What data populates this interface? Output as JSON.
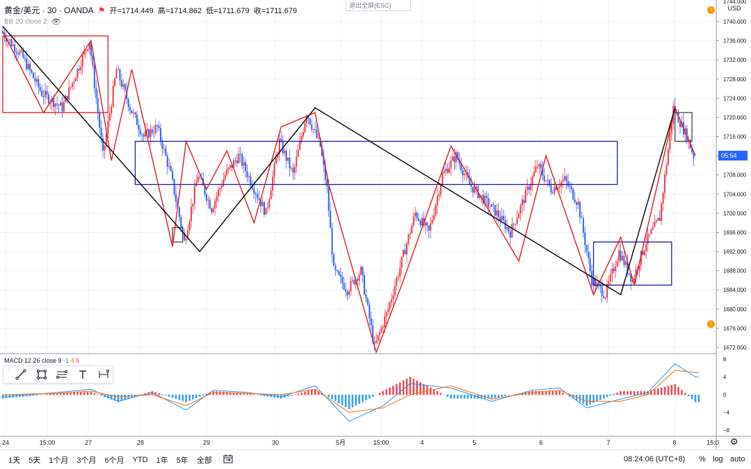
{
  "header": {
    "symbol": "黄金/美元 · 30 · OANDA",
    "open": "开=1714.449",
    "high": "高=1714.862",
    "low": "低=1711.679",
    "close": "收=1711.679",
    "indicator": "BB 20 close 2",
    "exit_fullscreen": "退出全屏(ESC)"
  },
  "price_axis": {
    "currency": "USD",
    "top_partial": "1744.000",
    "labels": [
      "1740.000",
      "1736.000",
      "1732.000",
      "1728.000",
      "1724.000",
      "1720.000",
      "1716.000",
      "1712.000",
      "1708.000",
      "1704.000",
      "1700.000",
      "1696.000",
      "1692.000",
      "1688.000",
      "1684.000",
      "1680.000",
      "1676.000",
      "1672.000"
    ],
    "current_tag": "05:54"
  },
  "macd": {
    "legend": "MACD 12 26 close 9",
    "values": [
      "-1",
      "4",
      "5"
    ],
    "axis_labels": [
      "8",
      "4",
      "0",
      "−4",
      "−8"
    ]
  },
  "time_axis": {
    "labels": [
      "24",
      "15:00",
      "27",
      "28",
      "29",
      "30",
      "5月",
      "15:00",
      "4",
      "5",
      "6",
      "7",
      "8",
      "15:0"
    ]
  },
  "toolbar": {
    "tools": [
      "trend-line",
      "rectangle",
      "fib",
      "text",
      "measure"
    ]
  },
  "bottom": {
    "timeframes": [
      "1天",
      "5天",
      "1个月",
      "3个月",
      "6个月",
      "YTD",
      "1年",
      "5年",
      "全部"
    ],
    "clock": "08:24:06 (UTC+8)",
    "percent": "%",
    "log": "log",
    "auto": "auto"
  },
  "colors": {
    "up": "#f23645",
    "down": "#2962ff",
    "zigzag_red": "#e31b1b",
    "zigzag_black": "#111111",
    "box_blue": "#1a1aa8",
    "box_red": "#d81e1e",
    "macd_fast": "#2196f3",
    "macd_slow": "#ff6d00"
  },
  "chart_data": {
    "type": "candlestick",
    "instrument": "XAU/USD",
    "interval": "30",
    "ylim": [
      1670,
      1744
    ],
    "price_waypoints": [
      [
        0,
        1738
      ],
      [
        3,
        1733
      ],
      [
        6,
        1725
      ],
      [
        9,
        1722
      ],
      [
        11,
        1729
      ],
      [
        13,
        1736
      ],
      [
        15,
        1712
      ],
      [
        17,
        1730
      ],
      [
        19,
        1722
      ],
      [
        21,
        1716
      ],
      [
        23,
        1718
      ],
      [
        25,
        1708
      ],
      [
        27,
        1694
      ],
      [
        29,
        1708
      ],
      [
        31,
        1701
      ],
      [
        33,
        1708
      ],
      [
        35,
        1712
      ],
      [
        37,
        1706
      ],
      [
        39,
        1700
      ],
      [
        41,
        1715
      ],
      [
        43,
        1708
      ],
      [
        45,
        1721
      ],
      [
        47,
        1714
      ],
      [
        48,
        1705
      ],
      [
        49,
        1688
      ],
      [
        51,
        1684
      ],
      [
        53,
        1688
      ],
      [
        55,
        1672
      ],
      [
        57,
        1680
      ],
      [
        59,
        1690
      ],
      [
        61,
        1700
      ],
      [
        63,
        1696
      ],
      [
        65,
        1708
      ],
      [
        67,
        1712
      ],
      [
        69,
        1706
      ],
      [
        71,
        1703
      ],
      [
        73,
        1700
      ],
      [
        75,
        1696
      ],
      [
        77,
        1703
      ],
      [
        79,
        1710
      ],
      [
        81,
        1705
      ],
      [
        83,
        1707
      ],
      [
        85,
        1702
      ],
      [
        87,
        1686
      ],
      [
        89,
        1683
      ],
      [
        91,
        1692
      ],
      [
        93,
        1686
      ],
      [
        95,
        1694
      ],
      [
        97,
        1699
      ],
      [
        99,
        1722
      ],
      [
        101,
        1716
      ],
      [
        102,
        1712
      ]
    ],
    "red_zigzag": [
      [
        0,
        1738
      ],
      [
        6,
        1721
      ],
      [
        13,
        1736
      ],
      [
        16,
        1711
      ],
      [
        19,
        1730
      ],
      [
        25,
        1693
      ],
      [
        27,
        1715
      ],
      [
        30,
        1705
      ],
      [
        33,
        1713
      ],
      [
        37,
        1698
      ],
      [
        41,
        1718
      ],
      [
        46,
        1721
      ],
      [
        48,
        1706
      ],
      [
        55,
        1671
      ],
      [
        59,
        1686
      ],
      [
        66,
        1714
      ],
      [
        76,
        1690
      ],
      [
        80,
        1712
      ],
      [
        87,
        1683
      ],
      [
        91,
        1695
      ],
      [
        93,
        1685
      ],
      [
        99,
        1722
      ],
      [
        102,
        1712
      ]
    ],
    "black_zigzag": [
      [
        0,
        1739
      ],
      [
        29,
        1692
      ],
      [
        46,
        1722
      ],
      [
        91,
        1683
      ],
      [
        99,
        1722
      ]
    ],
    "macd_fast_points": [
      [
        0,
        -0.5
      ],
      [
        8,
        0.5
      ],
      [
        13,
        1.2
      ],
      [
        17,
        -1.5
      ],
      [
        22,
        0.5
      ],
      [
        27,
        -3.5
      ],
      [
        31,
        1
      ],
      [
        36,
        0.5
      ],
      [
        41,
        -0.5
      ],
      [
        46,
        2
      ],
      [
        51,
        -6
      ],
      [
        56,
        -2.5
      ],
      [
        60,
        2.5
      ],
      [
        66,
        1.5
      ],
      [
        72,
        -1.5
      ],
      [
        78,
        1
      ],
      [
        82,
        1.5
      ],
      [
        86,
        -3
      ],
      [
        91,
        -1
      ],
      [
        95,
        0.5
      ],
      [
        99,
        7
      ],
      [
        102,
        4
      ]
    ],
    "macd_slow_points": [
      [
        0,
        0
      ],
      [
        8,
        0.3
      ],
      [
        13,
        0.8
      ],
      [
        17,
        -0.5
      ],
      [
        22,
        0
      ],
      [
        27,
        -2.5
      ],
      [
        31,
        0.5
      ],
      [
        36,
        0.3
      ],
      [
        41,
        0
      ],
      [
        46,
        1.2
      ],
      [
        51,
        -4
      ],
      [
        56,
        -3
      ],
      [
        60,
        0
      ],
      [
        66,
        2
      ],
      [
        72,
        -1
      ],
      [
        78,
        0.5
      ],
      [
        82,
        1
      ],
      [
        86,
        -1.5
      ],
      [
        91,
        -1.5
      ],
      [
        95,
        0
      ],
      [
        99,
        5.5
      ],
      [
        102,
        5
      ]
    ],
    "macd_ylim": [
      -9,
      9
    ],
    "total_bars": 103
  }
}
